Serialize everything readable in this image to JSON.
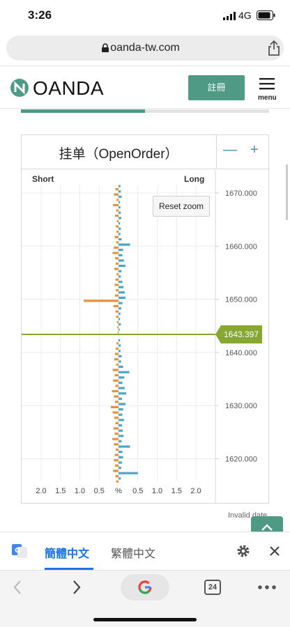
{
  "status_bar": {
    "time": "3:26",
    "network": "4G"
  },
  "browser": {
    "url": "oanda-tw.com",
    "tab_count": "24"
  },
  "header": {
    "logo_text": "OANDA",
    "register_label": "註冊",
    "menu_label": "menu"
  },
  "progress": {
    "fraction": 0.5
  },
  "chart_panel": {
    "title": "挂单（OpenOrder）",
    "zoom_out": "—",
    "zoom_in": "+",
    "reset_zoom": "Reset zoom",
    "invalid_date": "Invalid date"
  },
  "translate_bar": {
    "simplified": "簡體中文",
    "traditional": "繁體中文"
  },
  "colors": {
    "accent": "#4e9a85",
    "short": "#e8913a",
    "long": "#4aa6c7",
    "price_line": "#86a832"
  },
  "chart_data": {
    "type": "bar",
    "orientation": "horizontal",
    "title": "挂单（OpenOrder）",
    "side_labels": {
      "short": "Short",
      "long": "Long"
    },
    "x_ticks": [
      "2.0",
      "1.5",
      "1.0",
      "0.5",
      "%",
      "0.5",
      "1.0",
      "1.5",
      "2.0"
    ],
    "xlim": [
      -2.3,
      2.3
    ],
    "ylim": [
      1615.5,
      1672.5
    ],
    "y_ticks": [
      "1670.000",
      "1660.000",
      "1650.000",
      "1640.000",
      "1630.000",
      "1620.000"
    ],
    "y_tick_values": [
      1670,
      1660,
      1650,
      1640,
      1630,
      1620
    ],
    "current_price": 1643.397,
    "current_price_label": "1643.397",
    "series": [
      {
        "name": "Short",
        "levels": [
          1671,
          1670,
          1669,
          1668,
          1667,
          1666,
          1665,
          1664,
          1663,
          1662,
          1661,
          1660,
          1659,
          1658,
          1657,
          1656,
          1655,
          1654,
          1653,
          1652,
          1651,
          1650,
          1649,
          1648,
          1647,
          1646,
          1645,
          1644,
          1642,
          1641,
          1640,
          1639,
          1638,
          1637,
          1636,
          1635,
          1634,
          1633,
          1632,
          1631,
          1630,
          1629,
          1628,
          1627,
          1626,
          1625,
          1624,
          1623,
          1622,
          1621,
          1620,
          1619,
          1618,
          1617,
          1616
        ],
        "values": [
          0.08,
          0.12,
          0.05,
          0.14,
          0.06,
          0.09,
          0.04,
          0.07,
          0.05,
          0.1,
          0.06,
          0.12,
          0.15,
          0.09,
          0.07,
          0.11,
          0.05,
          0.08,
          0.1,
          0.07,
          0.09,
          0.9,
          0.13,
          0.08,
          0.06,
          0.04,
          0.03,
          0.02,
          0.05,
          0.07,
          0.09,
          0.11,
          0.06,
          0.15,
          0.1,
          0.14,
          0.08,
          0.17,
          0.12,
          0.09,
          0.2,
          0.15,
          0.11,
          0.08,
          0.13,
          0.1,
          0.16,
          0.12,
          0.07,
          0.1,
          0.12,
          0.09,
          0.14,
          0.08,
          0.06
        ]
      },
      {
        "name": "Long",
        "levels": [
          1671,
          1670,
          1669,
          1668,
          1667,
          1666,
          1665,
          1664,
          1663,
          1662,
          1661,
          1660,
          1659,
          1658,
          1657,
          1656,
          1655,
          1654,
          1653,
          1652,
          1651,
          1650,
          1649,
          1648,
          1647,
          1646,
          1645,
          1644,
          1642,
          1641,
          1640,
          1639,
          1638,
          1637,
          1636,
          1635,
          1634,
          1633,
          1632,
          1631,
          1630,
          1629,
          1628,
          1627,
          1626,
          1625,
          1624,
          1623,
          1622,
          1621,
          1620,
          1619,
          1618,
          1617,
          1616
        ],
        "values": [
          0.05,
          0.06,
          0.08,
          0.04,
          0.05,
          0.06,
          0.07,
          0.04,
          0.06,
          0.05,
          0.08,
          0.3,
          0.12,
          0.1,
          0.14,
          0.18,
          0.08,
          0.06,
          0.1,
          0.13,
          0.16,
          0.18,
          0.1,
          0.07,
          0.05,
          0.04,
          0.06,
          0.03,
          0.04,
          0.06,
          0.05,
          0.08,
          0.07,
          0.12,
          0.28,
          0.15,
          0.1,
          0.16,
          0.2,
          0.09,
          0.18,
          0.12,
          0.1,
          0.14,
          0.09,
          0.11,
          0.13,
          0.08,
          0.3,
          0.1,
          0.12,
          0.09,
          0.07,
          0.5,
          0.06
        ]
      }
    ]
  }
}
